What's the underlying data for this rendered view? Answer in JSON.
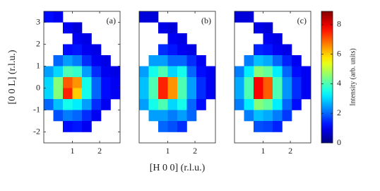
{
  "chart_data": [
    {
      "type": "heatmap",
      "label": "(a)",
      "colormap": "jet",
      "clim": [
        0,
        8.9
      ],
      "xlim": [
        -0.05,
        2.75
      ],
      "ylim": [
        -2.5,
        3.5
      ],
      "xticks": [
        1,
        2
      ],
      "yticks": [
        -2,
        -1,
        0,
        1,
        2,
        3
      ],
      "ylabel": "[0 0 L] (r.l.u.)",
      "xbins": [
        -0.05,
        0.3,
        0.65,
        1.0,
        1.35,
        1.7,
        2.05,
        2.4,
        2.75
      ],
      "ybins": [
        3.5,
        3.0,
        2.5,
        2.0,
        1.5,
        1.0,
        0.5,
        0.0,
        -0.5,
        -1.0,
        -1.5,
        -2.0,
        -2.5
      ],
      "values": [
        [
          1.2,
          1.0,
          null,
          null,
          null,
          null,
          null,
          null
        ],
        [
          null,
          null,
          1.0,
          0.8,
          null,
          null,
          null,
          null
        ],
        [
          null,
          null,
          null,
          1.0,
          0.9,
          null,
          null,
          null
        ],
        [
          null,
          null,
          1.2,
          1.3,
          1.0,
          0.9,
          null,
          null
        ],
        [
          null,
          2.0,
          2.5,
          2.2,
          1.5,
          1.0,
          0.9,
          null
        ],
        [
          2.5,
          3.0,
          4.0,
          3.8,
          2.5,
          1.5,
          1.0,
          0.9
        ],
        [
          3.0,
          4.5,
          7.0,
          6.5,
          3.5,
          2.0,
          1.2,
          1.0
        ],
        [
          3.0,
          4.5,
          7.5,
          6.0,
          3.5,
          2.0,
          1.2,
          1.0
        ],
        [
          2.0,
          2.8,
          3.5,
          3.2,
          2.5,
          1.5,
          1.0,
          null
        ],
        [
          null,
          1.8,
          2.2,
          2.0,
          1.5,
          1.0,
          null,
          null
        ],
        [
          null,
          null,
          1.2,
          1.3,
          1.0,
          null,
          null,
          null
        ],
        [
          null,
          null,
          null,
          null,
          null,
          null,
          null,
          null
        ]
      ]
    },
    {
      "type": "heatmap",
      "label": "(b)",
      "colormap": "jet",
      "clim": [
        0,
        8.9
      ],
      "xlim": [
        -0.05,
        2.75
      ],
      "ylim": [
        -2.5,
        3.5
      ],
      "xticks": [
        1,
        2
      ],
      "xlabel": "[H 0 0] (r.l.u.)",
      "xbins": [
        -0.05,
        0.3,
        0.65,
        1.0,
        1.35,
        1.7,
        2.05,
        2.4,
        2.75
      ],
      "ybins": [
        3.5,
        3.0,
        2.5,
        2.0,
        1.5,
        1.0,
        0.5,
        0.0,
        -0.5,
        -1.0,
        -1.5,
        -2.0,
        -2.5
      ],
      "values": [
        [
          0.8,
          0.8,
          null,
          null,
          null,
          null,
          null,
          null
        ],
        [
          null,
          null,
          0.9,
          0.8,
          null,
          null,
          null,
          null
        ],
        [
          null,
          null,
          null,
          1.0,
          0.9,
          null,
          null,
          null
        ],
        [
          null,
          null,
          1.5,
          1.3,
          1.0,
          0.9,
          null,
          null
        ],
        [
          null,
          2.5,
          2.5,
          2.0,
          2.0,
          1.5,
          1.0,
          null
        ],
        [
          2.5,
          3.5,
          4.0,
          3.0,
          3.5,
          2.0,
          1.2,
          1.0
        ],
        [
          2.8,
          4.0,
          7.5,
          6.5,
          4.0,
          2.5,
          1.5,
          1.0
        ],
        [
          2.8,
          4.0,
          7.5,
          6.5,
          4.0,
          2.5,
          1.5,
          1.0
        ],
        [
          2.5,
          3.5,
          4.0,
          3.0,
          3.5,
          2.0,
          1.2,
          null
        ],
        [
          null,
          2.5,
          2.5,
          2.2,
          2.5,
          2.0,
          null,
          null
        ],
        [
          null,
          null,
          2.0,
          1.8,
          1.5,
          null,
          null,
          null
        ],
        [
          null,
          null,
          null,
          null,
          null,
          null,
          null,
          null
        ]
      ]
    },
    {
      "type": "heatmap",
      "label": "(c)",
      "colormap": "jet",
      "clim": [
        0,
        8.9
      ],
      "xlim": [
        -0.05,
        2.75
      ],
      "ylim": [
        -2.5,
        3.5
      ],
      "xticks": [
        1,
        2
      ],
      "xbins": [
        -0.05,
        0.3,
        0.65,
        1.0,
        1.35,
        1.7,
        2.05,
        2.4,
        2.75
      ],
      "ybins": [
        3.5,
        3.0,
        2.5,
        2.0,
        1.5,
        1.0,
        0.5,
        0.0,
        -0.5,
        -1.0,
        -1.5,
        -2.0,
        -2.5
      ],
      "values": [
        [
          0.8,
          0.8,
          null,
          null,
          null,
          null,
          null,
          null
        ],
        [
          null,
          null,
          0.9,
          0.8,
          null,
          null,
          null,
          null
        ],
        [
          null,
          null,
          null,
          1.0,
          0.9,
          null,
          null,
          null
        ],
        [
          null,
          null,
          1.4,
          1.3,
          1.0,
          0.9,
          null,
          null
        ],
        [
          null,
          2.2,
          2.8,
          2.6,
          2.0,
          1.4,
          1.0,
          null
        ],
        [
          2.2,
          3.2,
          4.5,
          4.2,
          3.2,
          2.0,
          1.2,
          1.0
        ],
        [
          2.6,
          4.0,
          7.8,
          7.0,
          4.0,
          2.4,
          1.5,
          1.0
        ],
        [
          2.6,
          4.0,
          7.8,
          7.0,
          4.0,
          2.4,
          1.5,
          1.0
        ],
        [
          2.2,
          3.2,
          4.5,
          4.2,
          3.2,
          2.0,
          1.2,
          null
        ],
        [
          null,
          2.2,
          2.8,
          2.6,
          2.2,
          1.6,
          null,
          null
        ],
        [
          null,
          null,
          1.8,
          1.7,
          1.4,
          null,
          null,
          null
        ],
        [
          null,
          null,
          null,
          null,
          null,
          null,
          null,
          null
        ]
      ]
    },
    {
      "type": "colorbar",
      "label": "Intensity (arb. units)",
      "colormap": "jet",
      "ylim": [
        0,
        8.9
      ],
      "yticks": [
        0,
        2,
        4,
        6,
        8
      ]
    }
  ]
}
